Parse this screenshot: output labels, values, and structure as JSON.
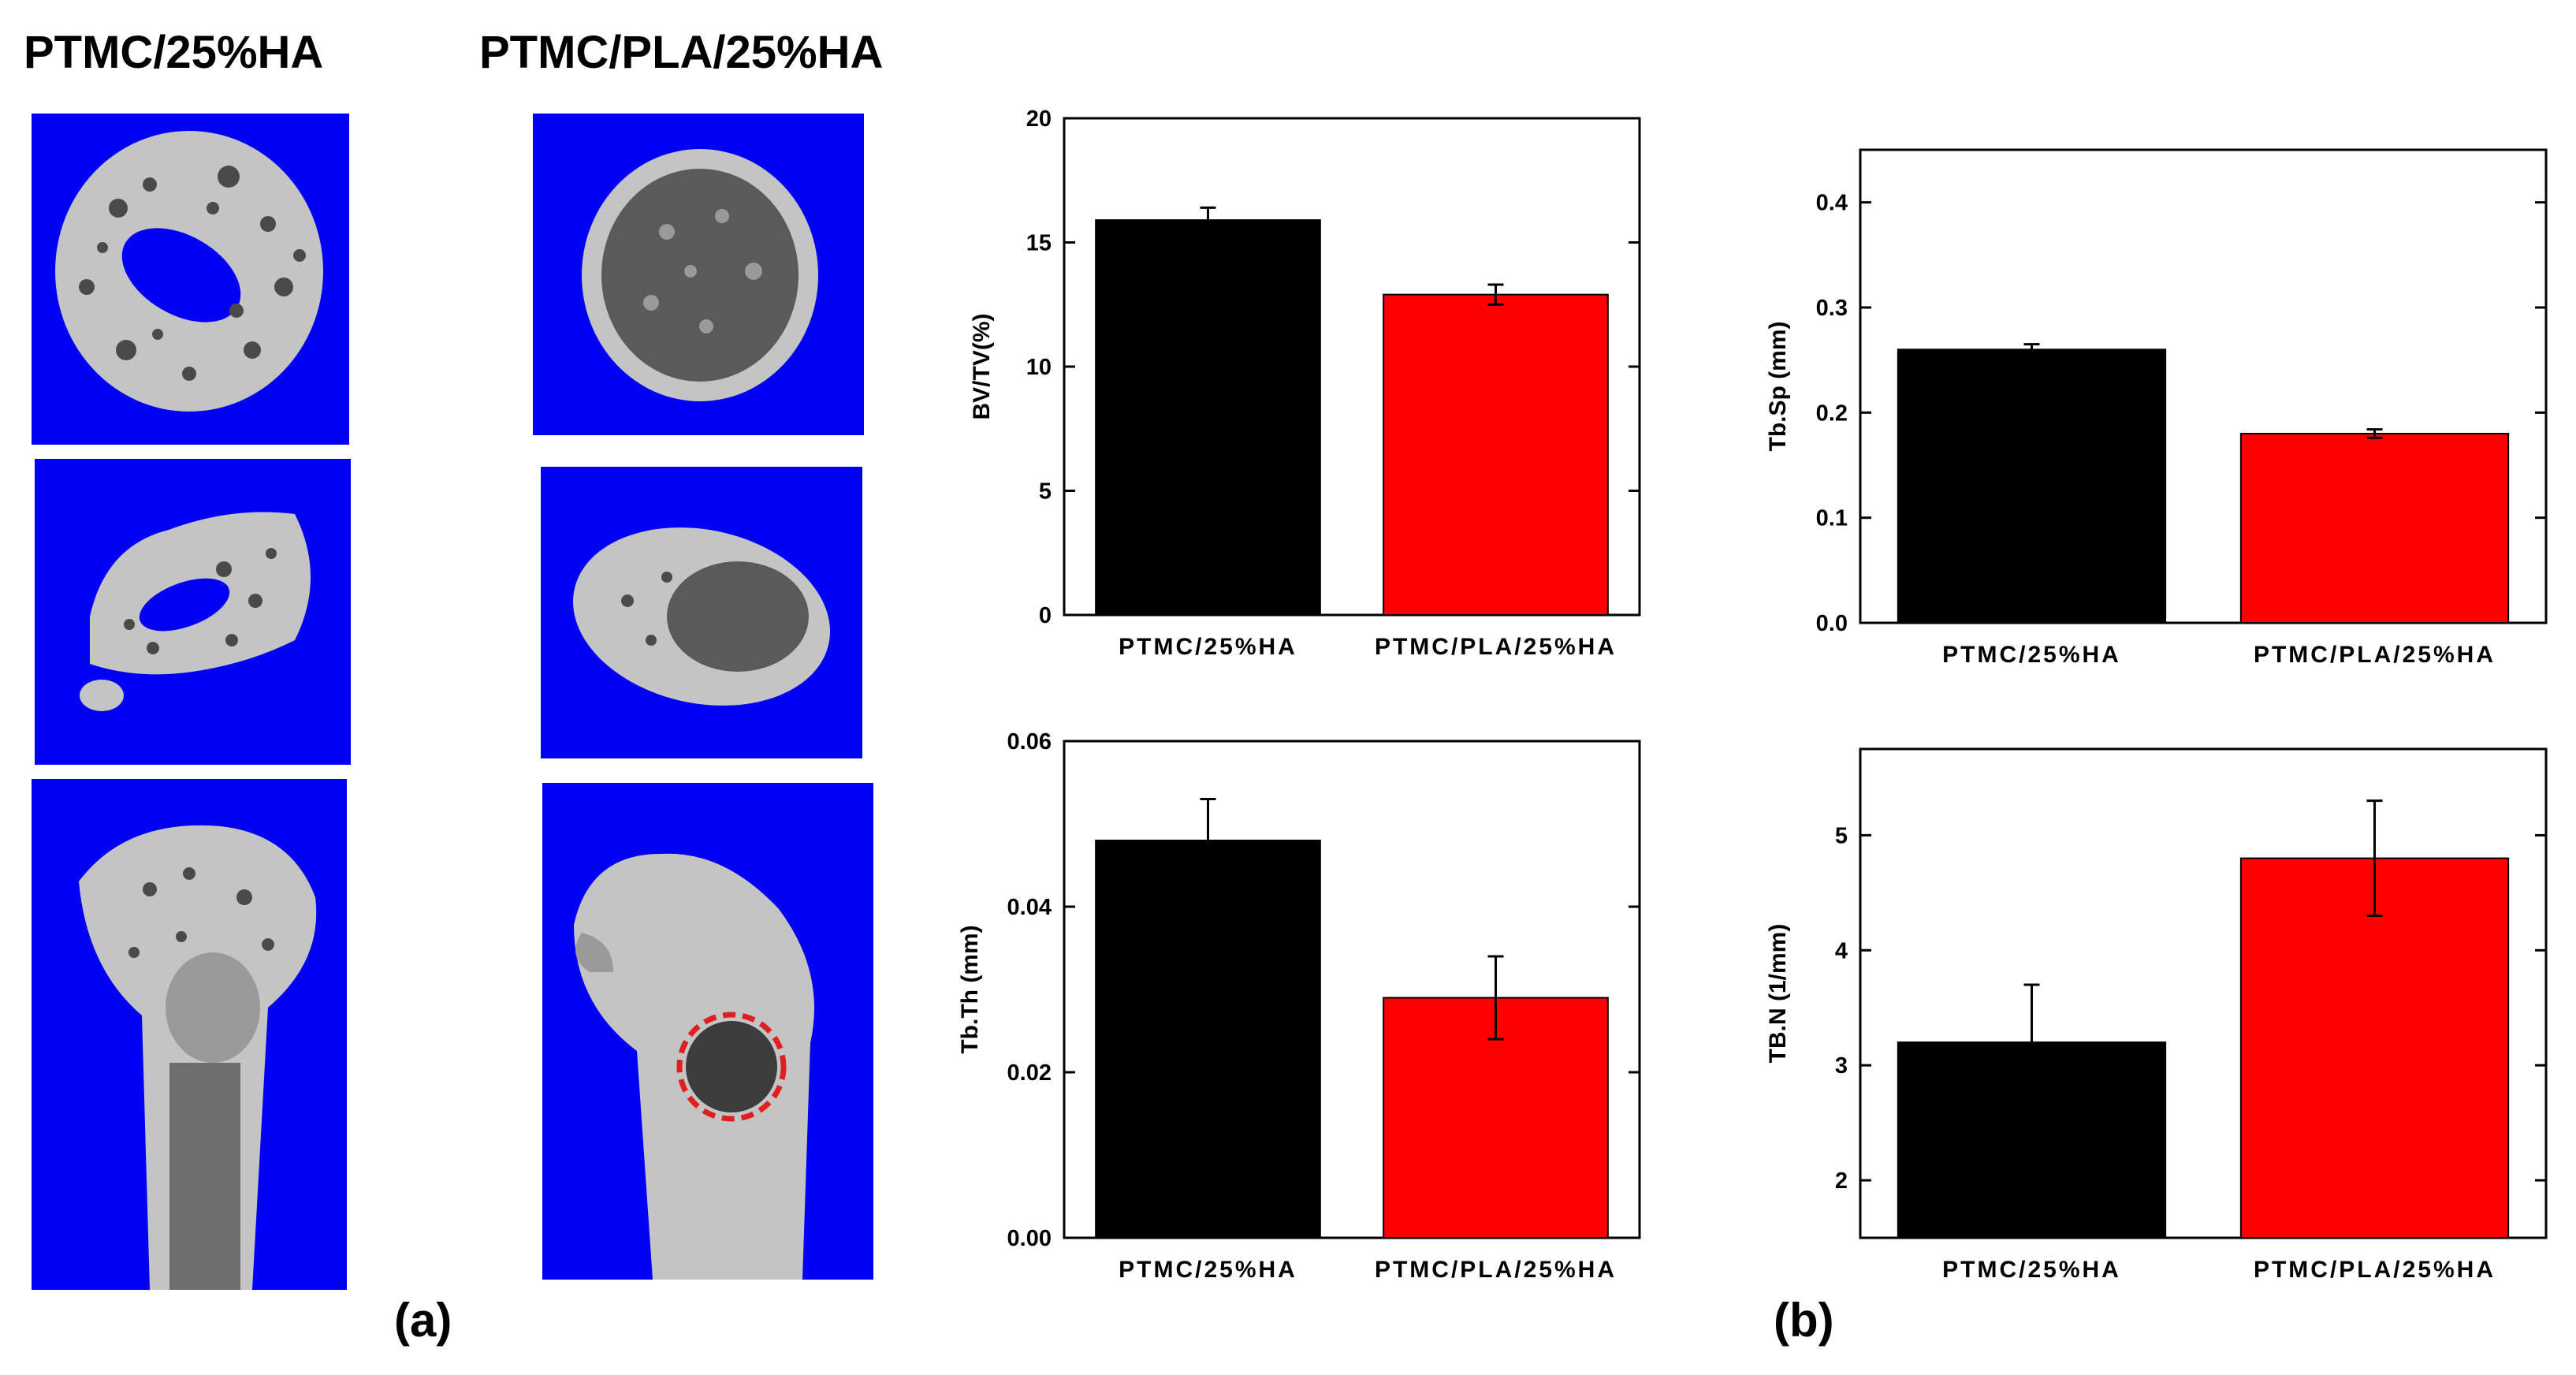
{
  "figure": {
    "columns": [
      "PTMC/25%HA",
      "PTMC/PLA/25%HA"
    ],
    "panel_labels": [
      "(a)",
      "(b)"
    ]
  },
  "images": {
    "left": [
      "cross-section-top",
      "oblique-section",
      "longitudinal-section"
    ],
    "right": [
      "cross-section-top",
      "oblique-section",
      "longitudinal-section-with-defect"
    ],
    "colors": {
      "background": "#0000f5",
      "bone": "#c8c8c8",
      "defect_ring": "#e02020"
    }
  },
  "colors": {
    "series1": "#000000",
    "series2": "#ff0000"
  },
  "chart_data": [
    {
      "type": "bar",
      "categories": [
        "PTMC/25%HA",
        "PTMC/PLA/25%HA"
      ],
      "values": [
        15.9,
        12.9
      ],
      "errors": [
        0.5,
        0.4
      ],
      "ylabel": "BV/TV(%)",
      "ylim": [
        0,
        20
      ],
      "yticks": [
        0,
        5,
        10,
        15,
        20
      ],
      "ytick_labels": [
        "0",
        "5",
        "10",
        "15",
        "20"
      ]
    },
    {
      "type": "bar",
      "categories": [
        "PTMC/25%HA",
        "PTMC/PLA/25%HA"
      ],
      "values": [
        0.26,
        0.18
      ],
      "errors": [
        0.005,
        0.004
      ],
      "ylabel": "Tb.Sp (mm)",
      "ylim": [
        0,
        0.45
      ],
      "yticks": [
        0.0,
        0.1,
        0.2,
        0.3,
        0.4
      ],
      "ytick_labels": [
        "0.0",
        "0.1",
        "0.2",
        "0.3",
        "0.4"
      ]
    },
    {
      "type": "bar",
      "categories": [
        "PTMC/25%HA",
        "PTMC/PLA/25%HA"
      ],
      "values": [
        0.048,
        0.029
      ],
      "errors": [
        0.005,
        0.005
      ],
      "ylabel": "Tb.Th (mm)",
      "ylim": [
        0,
        0.06
      ],
      "yticks": [
        0.0,
        0.02,
        0.04,
        0.06
      ],
      "ytick_labels": [
        "0.00",
        "0.02",
        "0.04",
        "0.06"
      ]
    },
    {
      "type": "bar",
      "categories": [
        "PTMC/25%HA",
        "PTMC/PLA/25%HA"
      ],
      "values": [
        3.2,
        4.8
      ],
      "errors": [
        0.5,
        0.5
      ],
      "ylabel": "TB.N (1/mm)",
      "ylim": [
        1.5,
        5.75
      ],
      "yticks": [
        2,
        3,
        4,
        5
      ],
      "ytick_labels": [
        "2",
        "3",
        "4",
        "5"
      ]
    }
  ]
}
